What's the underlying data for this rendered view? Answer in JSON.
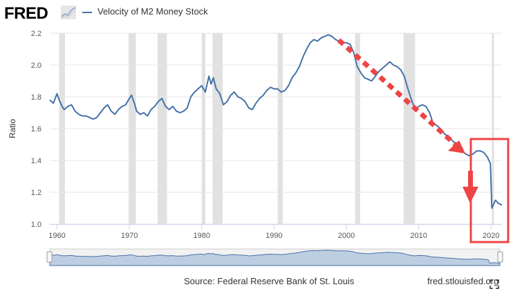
{
  "header": {
    "logo_text": "FRED",
    "legend_label": "Velocity of M2 Money Stock"
  },
  "colors": {
    "series": "#4572a7",
    "recession": "#e1e1e1",
    "annotation": "#ee4444",
    "navigator_fill": "#93b0d6"
  },
  "footer": {
    "source": "Source: Federal Reserve Bank of St. Louis",
    "url": "fred.stlouisfed.org"
  },
  "icons": {
    "fullscreen": "fullscreen-icon",
    "logo_graph": "fred-graph-icon"
  },
  "chart_data": {
    "type": "line",
    "ylabel": "Ratio",
    "xlim": [
      1959,
      2021.5
    ],
    "ylim": [
      1.0,
      2.2
    ],
    "x_ticks": [
      "1960",
      "1970",
      "1980",
      "1990",
      "2000",
      "2010",
      "2020"
    ],
    "y_ticks": [
      "1.0",
      "1.2",
      "1.4",
      "1.6",
      "1.8",
      "2.0",
      "2.2"
    ],
    "recessions": [
      [
        1960.3,
        1961.1
      ],
      [
        1969.9,
        1970.9
      ],
      [
        1973.9,
        1975.2
      ],
      [
        1980.0,
        1980.5
      ],
      [
        1981.5,
        1982.9
      ],
      [
        1990.5,
        1991.2
      ],
      [
        2001.2,
        2001.9
      ],
      [
        2007.9,
        2009.5
      ],
      [
        2020.1,
        2020.4
      ]
    ],
    "series": [
      {
        "name": "Velocity of M2 Money Stock",
        "x": [
          1959.0,
          1959.5,
          1960.0,
          1960.3,
          1960.7,
          1961.0,
          1961.5,
          1962.0,
          1962.5,
          1963.0,
          1963.5,
          1964.0,
          1964.5,
          1965.0,
          1965.5,
          1966.0,
          1966.5,
          1967.0,
          1967.5,
          1968.0,
          1968.5,
          1969.0,
          1969.5,
          1970.0,
          1970.3,
          1970.7,
          1971.0,
          1971.5,
          1972.0,
          1972.5,
          1973.0,
          1973.5,
          1974.0,
          1974.5,
          1975.0,
          1975.5,
          1976.0,
          1976.5,
          1977.0,
          1977.5,
          1978.0,
          1978.5,
          1979.0,
          1979.5,
          1980.0,
          1980.5,
          1981.0,
          1981.3,
          1981.6,
          1982.0,
          1982.5,
          1983.0,
          1983.5,
          1984.0,
          1984.5,
          1985.0,
          1985.5,
          1986.0,
          1986.5,
          1987.0,
          1987.5,
          1988.0,
          1988.5,
          1989.0,
          1989.5,
          1990.0,
          1990.5,
          1991.0,
          1991.5,
          1992.0,
          1992.5,
          1993.0,
          1993.5,
          1994.0,
          1994.5,
          1995.0,
          1995.5,
          1996.0,
          1996.5,
          1997.0,
          1997.5,
          1998.0,
          1998.5,
          1999.0,
          1999.5,
          2000.0,
          2000.5,
          2001.0,
          2001.5,
          2002.0,
          2002.5,
          2003.0,
          2003.5,
          2004.0,
          2004.5,
          2005.0,
          2005.5,
          2006.0,
          2006.5,
          2007.0,
          2007.5,
          2008.0,
          2008.5,
          2009.0,
          2009.5,
          2010.0,
          2010.5,
          2011.0,
          2011.5,
          2012.0,
          2012.5,
          2013.0,
          2013.5,
          2014.0,
          2014.5,
          2015.0,
          2015.5,
          2016.0,
          2016.5,
          2017.0,
          2017.5,
          2018.0,
          2018.5,
          2019.0,
          2019.5,
          2019.9,
          2020.1,
          2020.3,
          2020.6,
          2021.0,
          2021.5
        ],
        "values": [
          1.78,
          1.76,
          1.82,
          1.78,
          1.74,
          1.72,
          1.74,
          1.75,
          1.71,
          1.69,
          1.68,
          1.68,
          1.67,
          1.66,
          1.67,
          1.7,
          1.73,
          1.75,
          1.71,
          1.69,
          1.72,
          1.74,
          1.75,
          1.79,
          1.81,
          1.76,
          1.71,
          1.69,
          1.7,
          1.68,
          1.72,
          1.74,
          1.77,
          1.79,
          1.74,
          1.72,
          1.74,
          1.71,
          1.7,
          1.71,
          1.73,
          1.8,
          1.83,
          1.85,
          1.87,
          1.83,
          1.93,
          1.88,
          1.92,
          1.85,
          1.82,
          1.75,
          1.77,
          1.81,
          1.83,
          1.8,
          1.79,
          1.77,
          1.73,
          1.72,
          1.76,
          1.79,
          1.81,
          1.84,
          1.86,
          1.85,
          1.85,
          1.83,
          1.84,
          1.87,
          1.92,
          1.95,
          1.99,
          2.05,
          2.1,
          2.14,
          2.16,
          2.15,
          2.17,
          2.18,
          2.19,
          2.18,
          2.16,
          2.15,
          2.14,
          2.14,
          2.13,
          2.08,
          1.99,
          1.95,
          1.92,
          1.91,
          1.9,
          1.93,
          1.96,
          1.98,
          2.0,
          2.02,
          2.0,
          1.99,
          1.97,
          1.93,
          1.85,
          1.78,
          1.72,
          1.74,
          1.75,
          1.74,
          1.7,
          1.63,
          1.62,
          1.6,
          1.57,
          1.55,
          1.53,
          1.51,
          1.48,
          1.46,
          1.44,
          1.43,
          1.44,
          1.46,
          1.46,
          1.45,
          1.42,
          1.38,
          1.1,
          1.12,
          1.15,
          1.13,
          1.12
        ]
      }
    ]
  }
}
